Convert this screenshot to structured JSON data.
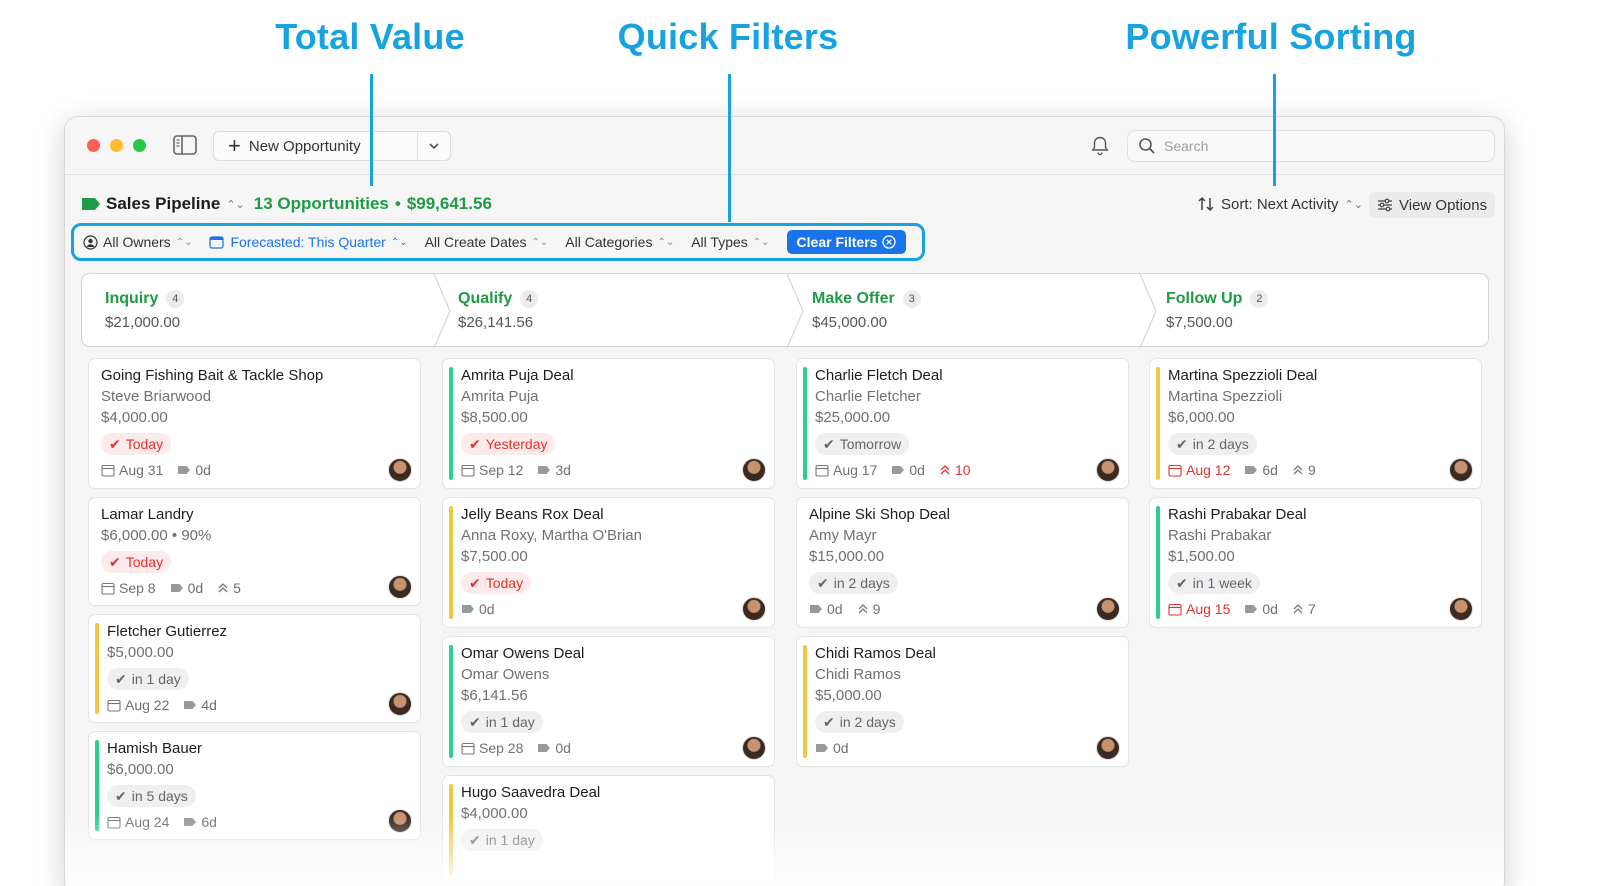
{
  "callouts": {
    "total_value": "Total Value",
    "quick_filters": "Quick Filters",
    "powerful_sorting": "Powerful Sorting"
  },
  "colors": {
    "accent": "#17a3e0",
    "green": "#1f9a45",
    "blue": "#1a73e8",
    "red": "#e0312e",
    "teal_bar": "#2ecf8c",
    "yellow_bar": "#f2c744"
  },
  "toolbar": {
    "new_opportunity": "New Opportunity",
    "search_placeholder": "Search"
  },
  "pipeline": {
    "title": "Sales Pipeline",
    "count": "13 Opportunities",
    "separator": "•",
    "total": "$99,641.56"
  },
  "sort": {
    "label": "Sort: Next Activity",
    "view_options": "View Options"
  },
  "filters": {
    "owners": "All Owners",
    "forecast": "Forecasted: This Quarter",
    "create_dates": "All Create Dates",
    "categories": "All Categories",
    "types": "All Types",
    "clear": "Clear Filters"
  },
  "stages": [
    {
      "name": "Inquiry",
      "count": "4",
      "total": "$21,000.00"
    },
    {
      "name": "Qualify",
      "count": "4",
      "total": "$26,141.56"
    },
    {
      "name": "Make Offer",
      "count": "3",
      "total": "$45,000.00"
    },
    {
      "name": "Follow Up",
      "count": "2",
      "total": "$7,500.00"
    }
  ],
  "cards": {
    "inquiry": [
      {
        "title": "Going Fishing Bait & Tackle Shop",
        "contact": "Steve Briarwood",
        "amount": "$4,000.00",
        "due": "Today",
        "date": "Aug 31",
        "age": "0d"
      },
      {
        "title": "Lamar Landry",
        "amount": "$6,000.00 • 90%",
        "due": "Today",
        "date": "Sep 8",
        "age": "0d",
        "stalled": "5"
      },
      {
        "title": "Fletcher Gutierrez",
        "amount": "$5,000.00",
        "due": "in 1 day",
        "date": "Aug 22",
        "age": "4d"
      },
      {
        "title": "Hamish Bauer",
        "amount": "$6,000.00",
        "due": "in 5 days",
        "date": "Aug 24",
        "age": "6d"
      }
    ],
    "qualify": [
      {
        "title": "Amrita Puja Deal",
        "contact": "Amrita Puja",
        "amount": "$8,500.00",
        "due": "Yesterday",
        "date": "Sep 12",
        "age": "3d"
      },
      {
        "title": "Jelly Beans Rox Deal",
        "contact": "Anna Roxy, Martha O'Brian",
        "amount": "$7,500.00",
        "due": "Today",
        "age": "0d"
      },
      {
        "title": "Omar Owens Deal",
        "contact": "Omar Owens",
        "amount": "$6,141.56",
        "due": "in 1 day",
        "date": "Sep 28",
        "age": "0d"
      },
      {
        "title": "Hugo Saavedra Deal",
        "amount": "$4,000.00",
        "due": "in 1 day"
      }
    ],
    "make_offer": [
      {
        "title": "Charlie Fletch Deal",
        "contact": "Charlie Fletcher",
        "amount": "$25,000.00",
        "due": "Tomorrow",
        "date": "Aug 17",
        "age": "0d",
        "stalled": "10"
      },
      {
        "title": "Alpine Ski Shop Deal",
        "contact": "Amy Mayr",
        "amount": "$15,000.00",
        "due": "in 2 days",
        "age": "0d",
        "stalled": "9"
      },
      {
        "title": "Chidi Ramos Deal",
        "contact": "Chidi Ramos",
        "amount": "$5,000.00",
        "due": "in 2 days",
        "age": "0d"
      }
    ],
    "follow_up": [
      {
        "title": "Martina Spezzioli Deal",
        "contact": "Martina Spezzioli",
        "amount": "$6,000.00",
        "due": "in 2 days",
        "date": "Aug 12",
        "age": "6d",
        "stalled": "9"
      },
      {
        "title": "Rashi Prabakar Deal",
        "contact": "Rashi Prabakar",
        "amount": "$1,500.00",
        "due": "in 1 week",
        "date": "Aug 15",
        "age": "0d",
        "stalled": "7"
      }
    ]
  }
}
